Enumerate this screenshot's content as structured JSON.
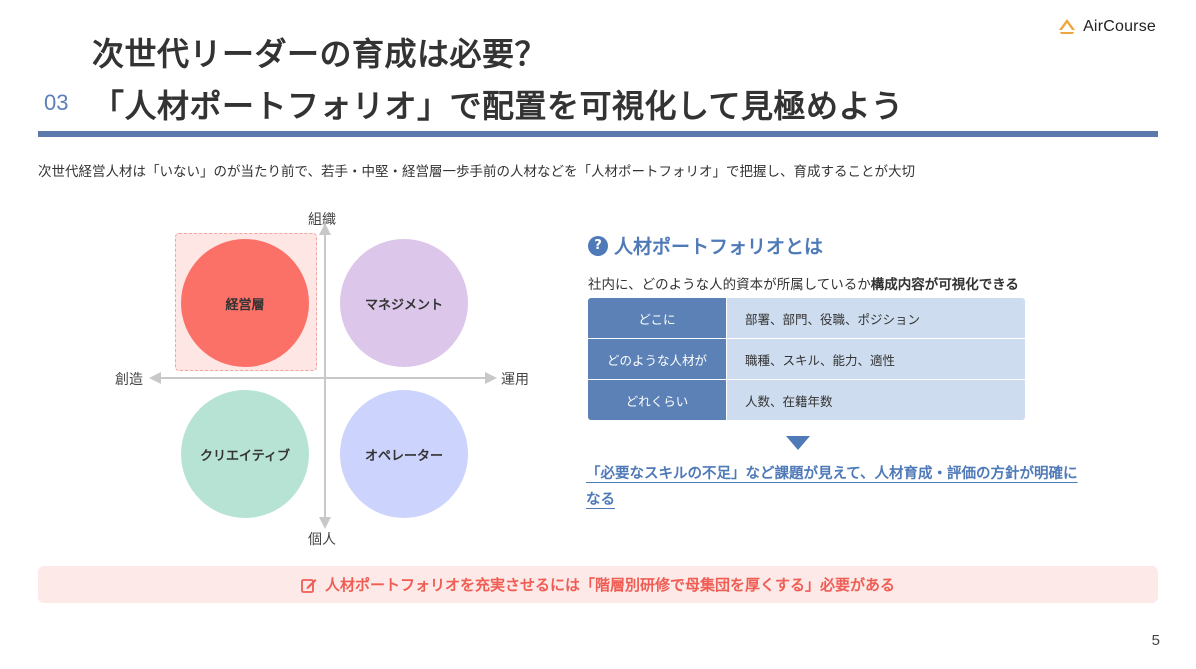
{
  "brand": {
    "name": "AirCourse",
    "accent": "#f0a640"
  },
  "header": {
    "section_number": "03",
    "title_line1": "次世代リーダーの育成は必要？",
    "title_line2": "「人材ポートフォリオ」で配置を可視化して見極めよう",
    "rule_color": "#5b79ad"
  },
  "lead_text": "次世代経営人材は「いない」のが当たり前で、若手・中堅・経営層一歩手前の人材などを「人材ポートフォリオ」で把握し、育成することが大切",
  "matrix": {
    "axis_top": "組織",
    "axis_bottom": "個人",
    "axis_left": "創造",
    "axis_right": "運用",
    "quadrants": [
      {
        "label": "経営層",
        "color": "#fb7167",
        "highlighted": true
      },
      {
        "label": "マネジメント",
        "color": "#dcc6ea"
      },
      {
        "label": "クリエイティブ",
        "color": "#b7e3d5"
      },
      {
        "label": "オペレーター",
        "color": "#ccd3fc"
      }
    ]
  },
  "portfolio": {
    "icon": "question-icon",
    "title": "人材ポートフォリオとは",
    "desc_prefix": "社内に、どのような人的資本が所属しているか",
    "desc_bold": "構成内容が可視化できる",
    "rows": [
      {
        "key": "どこに",
        "value": "部署、部門、役職、ポジション"
      },
      {
        "key": "どのような人材が",
        "value": "職種、スキル、能力、適性"
      },
      {
        "key": "どれくらい",
        "value": "人数、在籍年数"
      }
    ],
    "result": "「必要なスキルの不足」など課題が見えて、人材育成・評価の方針が明確になる"
  },
  "banner": {
    "icon": "pen-icon",
    "text": "人材ポートフォリオを充実させるには「階層別研修で母集団を厚くする」必要がある"
  },
  "page_number": "5"
}
